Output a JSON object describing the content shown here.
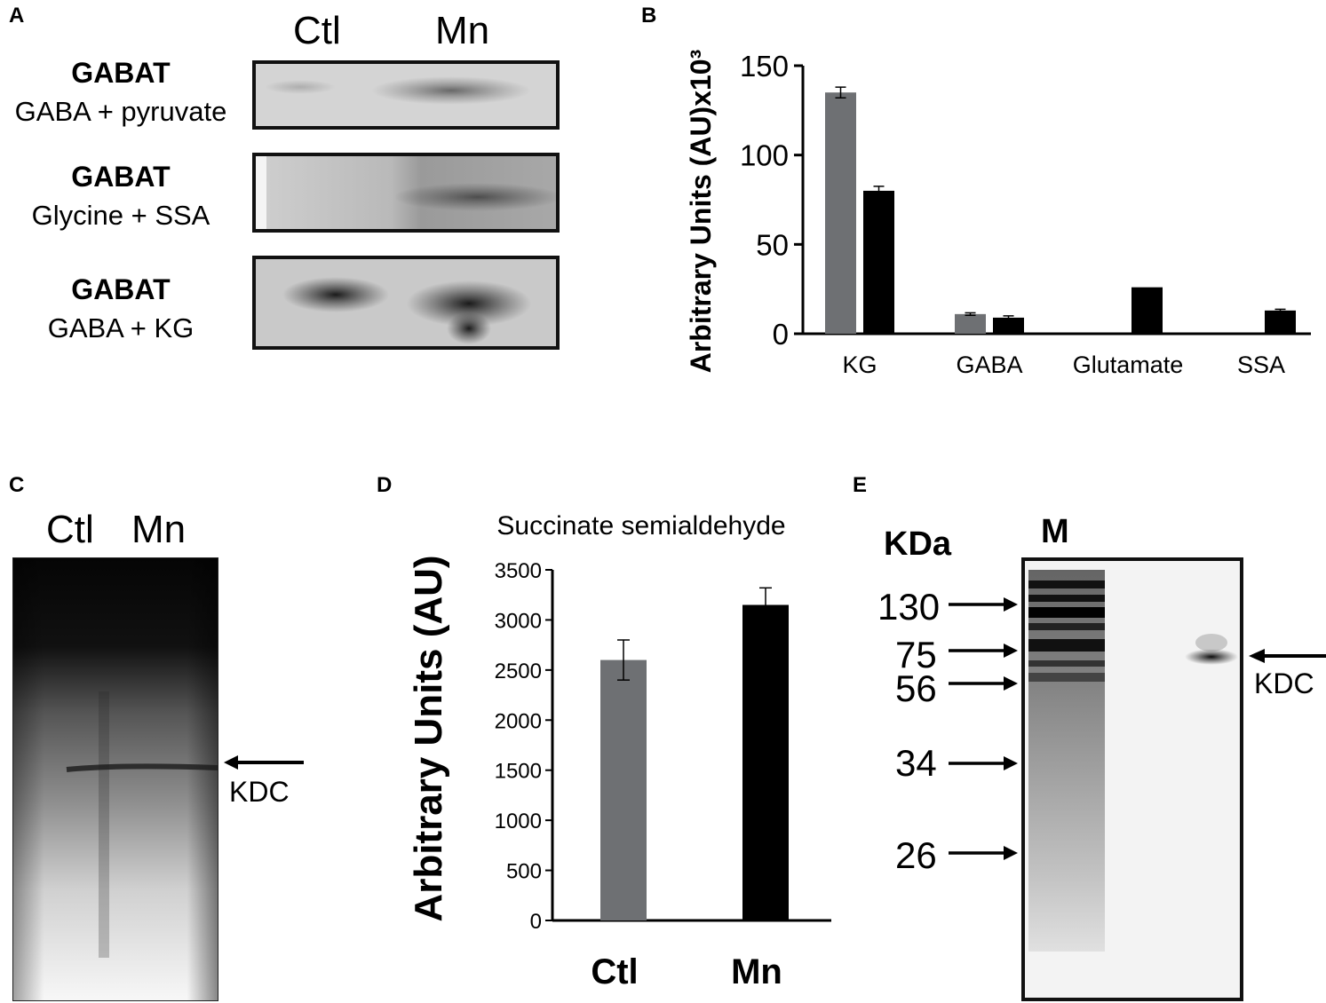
{
  "panels": {
    "A": {
      "letter": "A",
      "lane_labels": [
        "Ctl",
        "Mn"
      ],
      "rows": [
        {
          "title": "GABAT",
          "subtitle": "GABA + pyruvate"
        },
        {
          "title": "GABAT",
          "subtitle": "Glycine + SSA"
        },
        {
          "title": "GABAT",
          "subtitle": "GABA + KG"
        }
      ]
    },
    "B": {
      "letter": "B"
    },
    "C": {
      "letter": "C",
      "lane_labels": [
        "Ctl",
        "Mn"
      ],
      "arrow_label": "KDC"
    },
    "D": {
      "letter": "D"
    },
    "E": {
      "letter": "E",
      "unit_label": "KDa",
      "marker_lane_label": "M",
      "markers": [
        "130",
        "75",
        "56",
        "34",
        "26"
      ],
      "arrow_label": "KDC"
    }
  },
  "colors": {
    "ctl_bar": "#6e7073",
    "mn_bar": "#000000"
  },
  "chart_data": [
    {
      "panel": "B",
      "type": "bar",
      "title": "",
      "xlabel": "",
      "ylabel": "Arbitrary Units (AU)x10³",
      "ylim": [
        0,
        150
      ],
      "yticks": [
        0,
        50,
        100,
        150
      ],
      "categories": [
        "KG",
        "GABA",
        "Glutamate",
        "SSA"
      ],
      "series": [
        {
          "color": "#6e7073",
          "values": [
            135,
            11,
            0,
            0
          ],
          "errors": [
            3,
            0.7,
            0,
            0
          ]
        },
        {
          "color": "#000000",
          "values": [
            80,
            9,
            26,
            13
          ],
          "errors": [
            2.5,
            1,
            0,
            0.7
          ]
        }
      ],
      "grid": false
    },
    {
      "panel": "D",
      "type": "bar",
      "title": "Succinate semialdehyde",
      "xlabel": "",
      "ylabel": "Arbitrary Units (AU)",
      "ylim": [
        0,
        3500
      ],
      "yticks": [
        0,
        500,
        1000,
        1500,
        2000,
        2500,
        3000,
        3500
      ],
      "categories": [
        "Ctl",
        "Mn"
      ],
      "values": [
        2600,
        3150
      ],
      "errors": [
        200,
        170
      ],
      "colors": [
        "#6e7073",
        "#000000"
      ],
      "grid": false
    }
  ]
}
